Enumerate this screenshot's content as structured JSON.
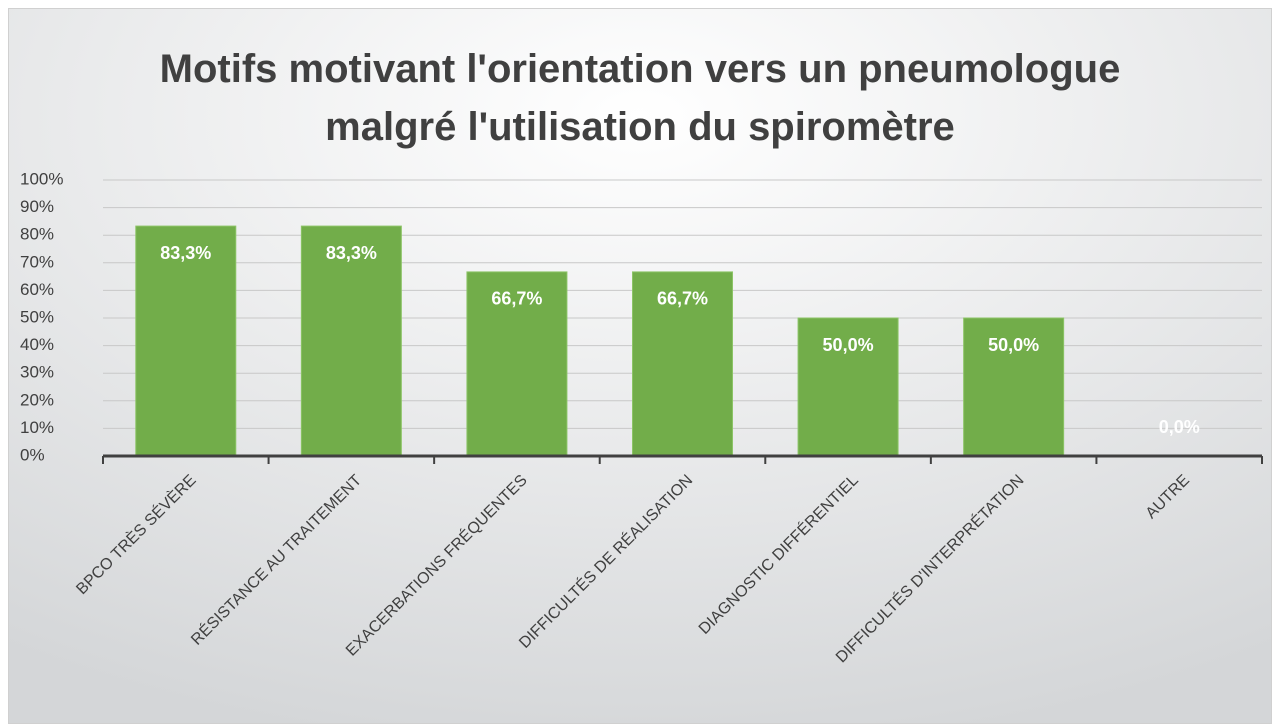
{
  "chart_data": {
    "type": "bar",
    "title": "Motifs motivant l'orientation vers un pneumologue malgré l'utilisation du spiromètre",
    "categories": [
      "BPCO TRÈS SÉVÈRE",
      "RÉSISTANCE AU TRAITEMENT",
      "EXACERBATIONS FRÉQUENTES",
      "DIFFICULTÉS DE RÉALISATION",
      "DIAGNOSTIC DIFFÉRENTIEL",
      "DIFFICULTÉS D'INTERPRÉTATION",
      "AUTRE"
    ],
    "values": [
      83.3,
      83.3,
      66.7,
      66.7,
      50.0,
      50.0,
      0.0
    ],
    "value_labels": [
      "83,3%",
      "83,3%",
      "66,7%",
      "66,7%",
      "50,0%",
      "50,0%",
      "0,0%"
    ],
    "color": "#72ad4a",
    "ylim": [
      0,
      100
    ],
    "yticks": [
      {
        "value": 0,
        "label": "0%"
      },
      {
        "value": 10,
        "label": "10%"
      },
      {
        "value": 20,
        "label": "20%"
      },
      {
        "value": 30,
        "label": "30%"
      },
      {
        "value": 40,
        "label": "40%"
      },
      {
        "value": 50,
        "label": "50%"
      },
      {
        "value": 60,
        "label": "60%"
      },
      {
        "value": 70,
        "label": "70%"
      },
      {
        "value": 80,
        "label": "80%"
      },
      {
        "value": 90,
        "label": "90%"
      },
      {
        "value": 100,
        "label": "100%"
      }
    ],
    "grid": true
  }
}
